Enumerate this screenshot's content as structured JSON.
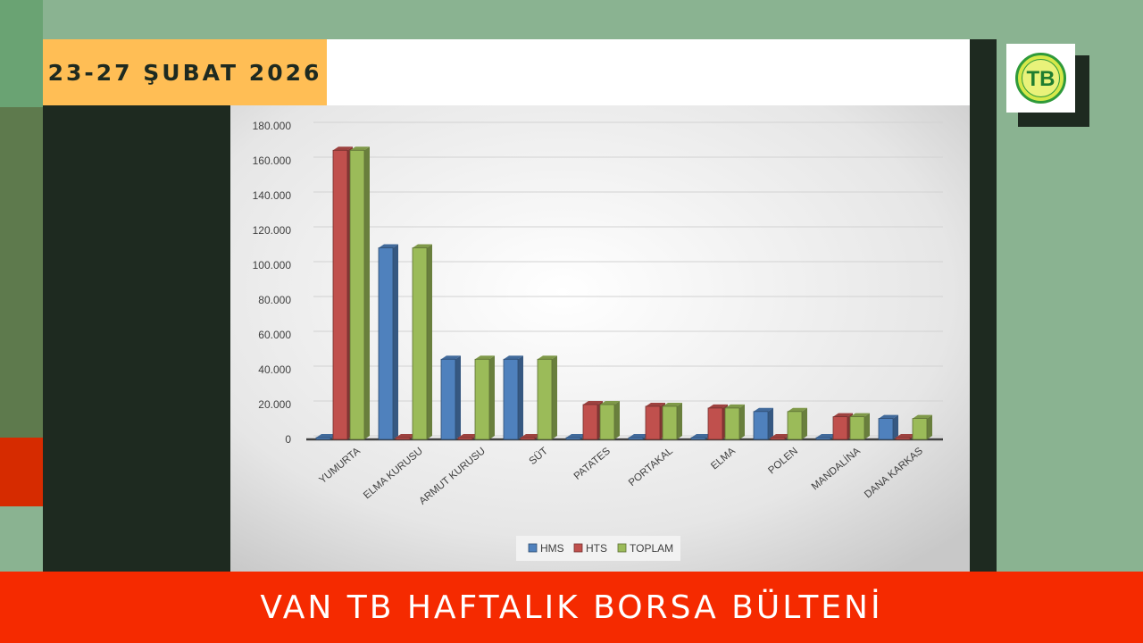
{
  "header": {
    "date": "23-27 ŞUBAT 2026"
  },
  "footer": {
    "title": "VAN TB HAFTALIK BORSA BÜLTENİ"
  },
  "logo": {
    "icon": "borsa-logo-icon",
    "monogram": "TB"
  },
  "colors": {
    "hms": "#4f81bd",
    "hts": "#c0504d",
    "toplam": "#9bbb59"
  },
  "chart_data": {
    "type": "bar",
    "categories": [
      "YUMURTA",
      "ELMA KURUSU",
      "ARMUT KURUSU",
      "SÜT",
      "PATATES",
      "PORTAKAL",
      "ELMA",
      "POLEN",
      "MANDALİNA",
      "DANA KARKAS"
    ],
    "series": [
      {
        "name": "HMS",
        "values": [
          0,
          110000,
          46000,
          46000,
          0,
          0,
          0,
          16000,
          0,
          12000
        ]
      },
      {
        "name": "HTS",
        "values": [
          166000,
          0,
          0,
          0,
          20000,
          19000,
          18000,
          0,
          13000,
          0
        ]
      },
      {
        "name": "TOPLAM",
        "values": [
          166000,
          110000,
          46000,
          46000,
          20000,
          19000,
          18000,
          16000,
          13000,
          12000
        ]
      }
    ],
    "yticks": [
      "0",
      "20.000",
      "40.000",
      "60.000",
      "80.000",
      "100.000",
      "120.000",
      "140.000",
      "160.000",
      "180.000"
    ],
    "ylim": [
      0,
      180000
    ],
    "grid": true,
    "legend": "bottom-center"
  }
}
